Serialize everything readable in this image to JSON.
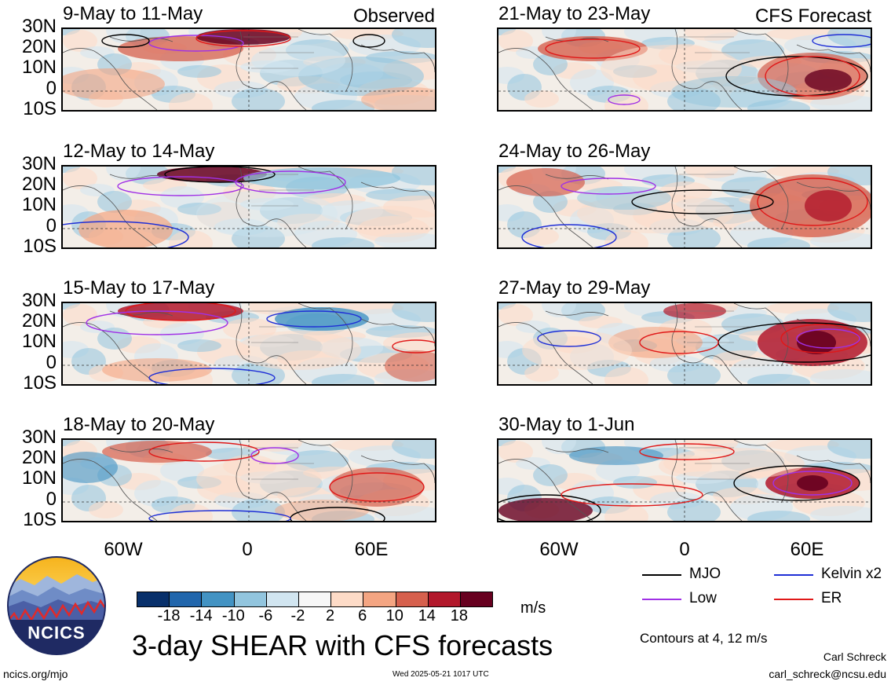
{
  "panels": {
    "observed_label": "Observed",
    "forecast_label": "CFS Forecast",
    "left": [
      {
        "title": "9-May to 11-May"
      },
      {
        "title": "12-May to 14-May"
      },
      {
        "title": "15-May to 17-May"
      },
      {
        "title": "18-May to 20-May"
      }
    ],
    "right": [
      {
        "title": "21-May to 23-May"
      },
      {
        "title": "24-May to 26-May"
      },
      {
        "title": "27-May to 29-May"
      },
      {
        "title": "30-May to 1-Jun"
      }
    ]
  },
  "lat_labels": [
    "30N",
    "20N",
    "10N",
    "0",
    "10S"
  ],
  "lon_labels": [
    "60W",
    "0",
    "60E"
  ],
  "colorbar": {
    "ticks": [
      "-18",
      "-14",
      "-10",
      "-6",
      "-2",
      "2",
      "6",
      "10",
      "14",
      "18"
    ],
    "units": "m/s",
    "colors": [
      "#08306b",
      "#2166ac",
      "#4393c3",
      "#92c5de",
      "#d1e5f0",
      "#f7f7f7",
      "#fddbc7",
      "#f4a582",
      "#d6604d",
      "#b2182b",
      "#67001f"
    ]
  },
  "legend": {
    "items": [
      {
        "label": "MJO",
        "color": "#000000"
      },
      {
        "label": "Kelvin x2",
        "color": "#1f2fd6"
      },
      {
        "label": "Low",
        "color": "#a030e6"
      },
      {
        "label": "ER",
        "color": "#e01818"
      }
    ],
    "contours_note": "Contours at 4, 12 m/s"
  },
  "main_title": "3-day SHEAR with CFS forecasts",
  "logo_text": "NCICS",
  "footer": {
    "left_url": "ncics.org/mjo",
    "timestamp": "Wed 2025-05-21 1017 UTC",
    "author": "Carl Schreck",
    "email": "carl_schreck@ncsu.edu"
  }
}
